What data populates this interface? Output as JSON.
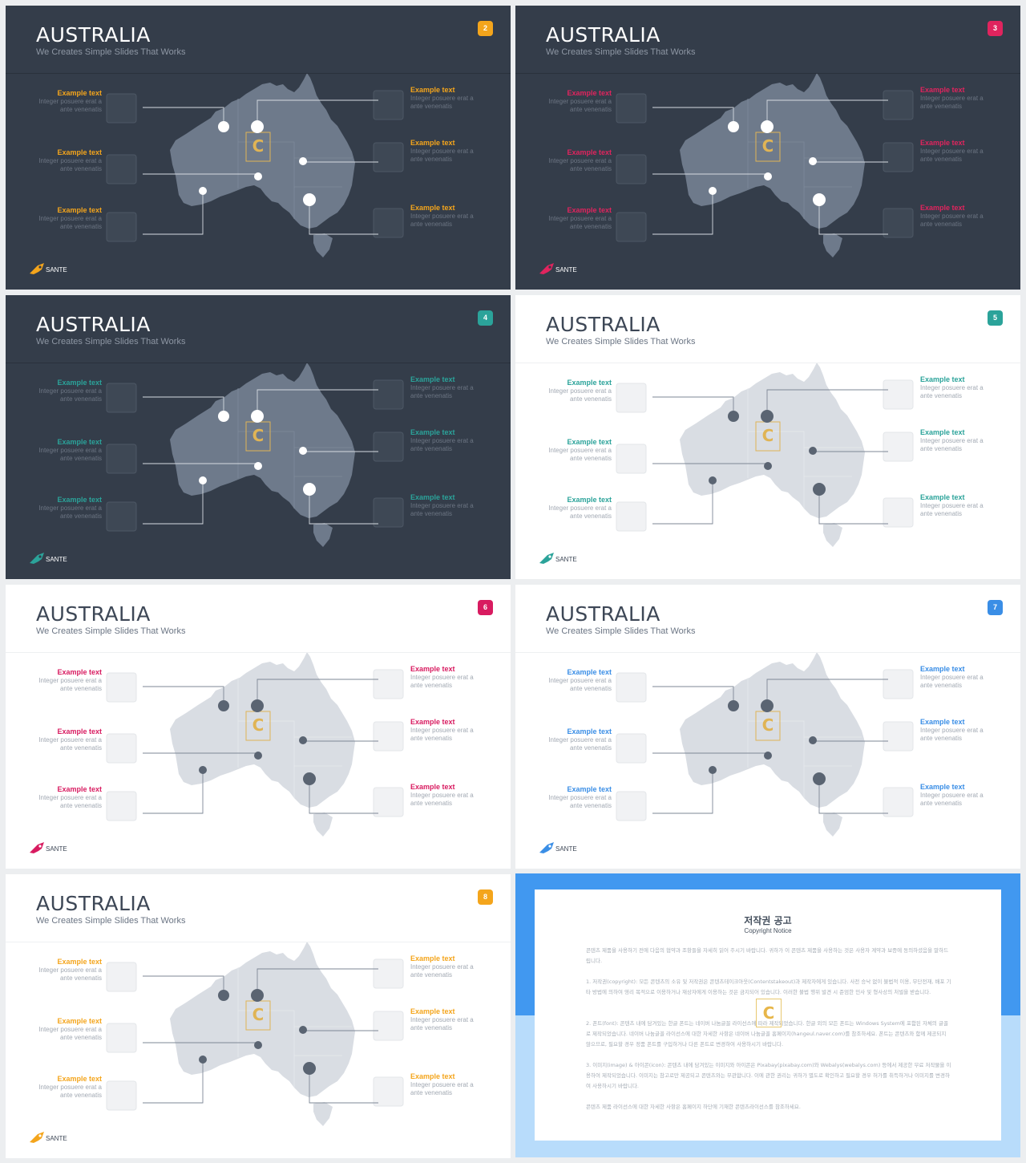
{
  "slides": [
    {
      "num": "2",
      "theme": "dark",
      "accent": "#f4a51c",
      "title": "AUSTRALIA",
      "subtitle": "We Creates Simple Slides That Works",
      "logo": "SANTE"
    },
    {
      "num": "3",
      "theme": "dark",
      "accent": "#e0245e",
      "title": "AUSTRALIA",
      "subtitle": "We Creates Simple Slides That Works",
      "logo": "SANTE"
    },
    {
      "num": "4",
      "theme": "dark",
      "accent": "#2ba39a",
      "title": "AUSTRALIA",
      "subtitle": "We Creates Simple Slides That Works",
      "logo": "SANTE"
    },
    {
      "num": "5",
      "theme": "light",
      "accent": "#2ba39a",
      "title": "AUSTRALIA",
      "subtitle": "We Creates Simple Slides That Works",
      "logo": "SANTE"
    },
    {
      "num": "6",
      "theme": "light",
      "accent": "#d81b60",
      "title": "AUSTRALIA",
      "subtitle": "We Creates Simple Slides That Works",
      "logo": "SANTE"
    },
    {
      "num": "7",
      "theme": "light",
      "accent": "#3a8ee6",
      "title": "AUSTRALIA",
      "subtitle": "We Creates Simple Slides That Works",
      "logo": "SANTE"
    },
    {
      "num": "8",
      "theme": "light",
      "accent": "#f4a51c",
      "title": "AUSTRALIA",
      "subtitle": "We Creates Simple Slides That Works",
      "logo": "SANTE"
    }
  ],
  "label_heading": "Example text",
  "label_body_line1": "Integer posuere erat a",
  "label_body_line2": "ante venenatis",
  "map_icon": "australia-map",
  "watermark_icon": "contents-c-logo",
  "copyright": {
    "title": "저작권 공고",
    "subtitle": "Copyright Notice",
    "paragraphs": [
      "콘텐츠 제품을 사용하기 전에 다음의 협약과 조항들을 자세히 읽어 주시기 바랍니다. 귀하가 이 콘텐츠 제품을 사용하는 것은 사용자 계약과 보증에 동의하셨음을 말하드립니다.",
      "1. 저작권(copyright): 모든 콘텐츠의 소유 및 저작권은 콘텐츠테이크아웃(Contentstakeout)과 제작자에게 있습니다. 사전 승낙 없이 불법적 이용, 무단전재, 배포 기타 방법에 의하여 영리 목적으로 이용하거나 재상자에게 이용하는 것은 금지되어 있습니다. 이러한 불법 행위 발견 시 준엄한 민사 및 형사상의 처벌을 받습니다.",
      "2. 폰트(font): 콘텐츠 내에 담겨있는 한글 폰트는 네이버 나눔글꼴 라이선스에 따라 제작되었습니다. 한글 외의 모든 폰트는 Windows System에 포함된 자체의 글꼴로 제작되었습니다. 네이버 나눔글꼴 라이선스에 대한 자세한 사항은 네이버 나눔글꼴 홈페이지(hangeul.naver.com)를 참조하세요. 폰트는 콘텐츠와 함께 제공되지 않으므로, 필요할 경우 정품 폰트를 구입하거나 다른 폰트로 변경하여 사용하시기 바랍니다.",
      "3. 이미지(image) & 아이콘(icon): 콘텐츠 내에 담겨있는 이미지와 아이콘은 Pixabay(pixabay.com)와 Webalys(webalys.com) 등에서 제공한 무료 저작물을 이용하여 제작되었습니다. 이미지는 참고로만 제공되고 콘텐츠와는 무관합니다. 이에 관한 권리는 귀하가 별도로 확인하고 필요할 경우 허가를 취득하거나 이미지를 변경하여 사용하시기 바랍니다.",
      "콘텐츠 제품 라이선스에 대한 자세한 사항은 홈페이지 하단에 기재한 콘텐츠라이선스를 참조하세요."
    ]
  }
}
